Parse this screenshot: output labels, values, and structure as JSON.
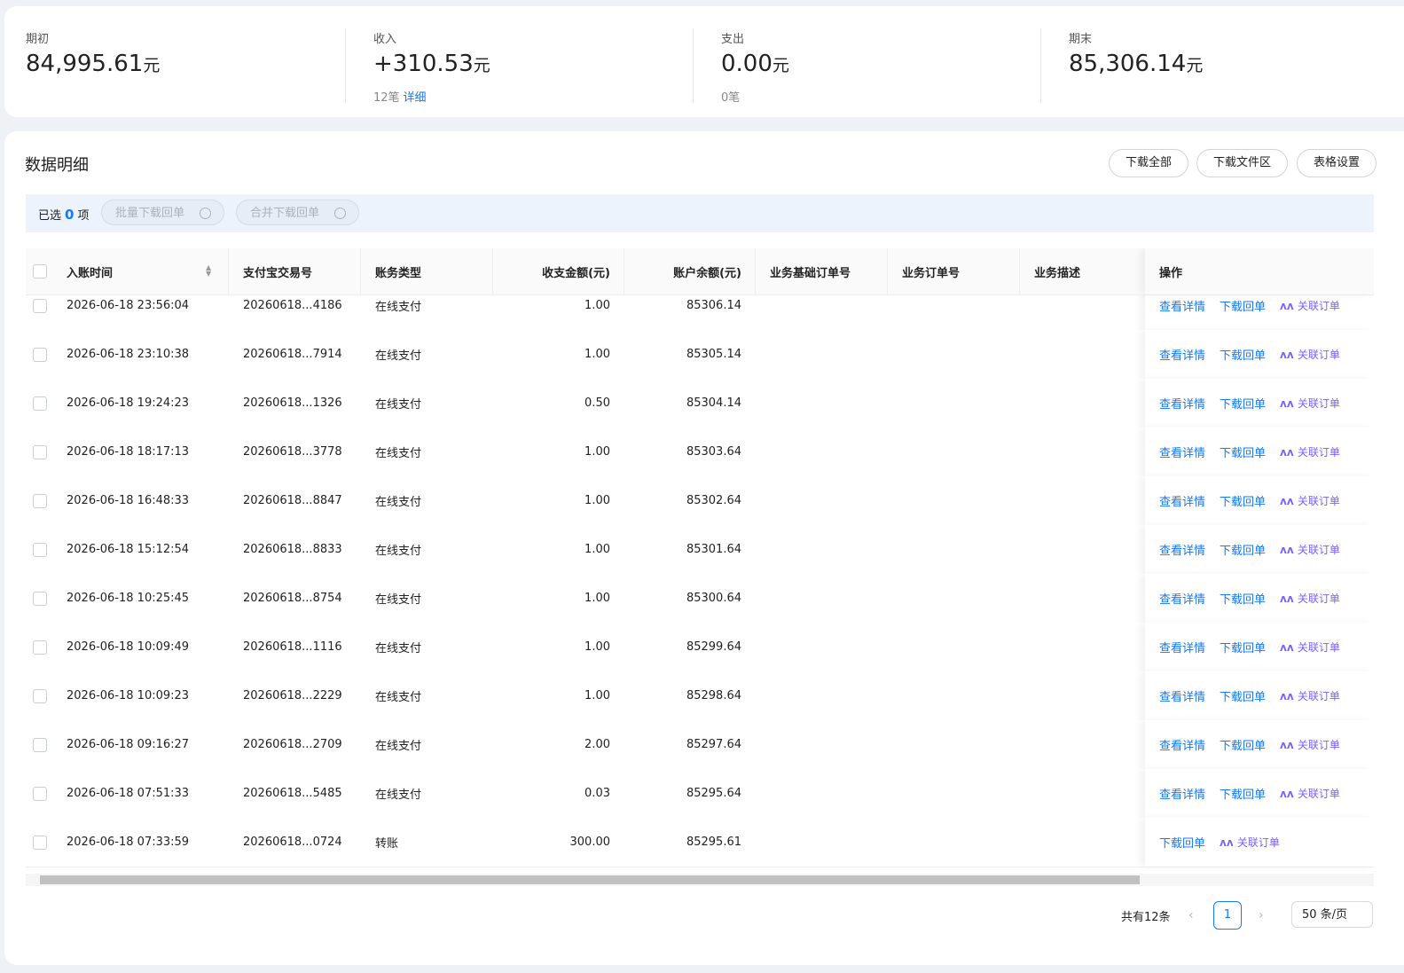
{
  "summary": [
    {
      "label": "期初",
      "value": "84,995.61",
      "unit": "元"
    },
    {
      "label": "收入",
      "value": "+310.53",
      "unit": "元",
      "count": "12笔",
      "link": "详细"
    },
    {
      "label": "支出",
      "value": "0.00",
      "unit": "元",
      "count": "0笔"
    },
    {
      "label": "期末",
      "value": "85,306.14",
      "unit": "元"
    }
  ],
  "section": {
    "title": "数据明细",
    "buttons": [
      "下载全部",
      "下载文件区",
      "表格设置"
    ]
  },
  "selection": {
    "prefix": "已选",
    "count": "0",
    "suffix": "项",
    "actions": [
      "批量下载回单",
      "合并下载回单"
    ]
  },
  "table": {
    "columns": [
      "入账时间",
      "支付宝交易号",
      "账务类型",
      "收支金额(元)",
      "账户余额(元)",
      "业务基础订单号",
      "业务订单号",
      "业务描述",
      "操作"
    ],
    "rows": [
      {
        "cells": [
          "2026-06-18 23:56:04",
          "20260618...4186",
          "在线支付",
          "1.00",
          "85306.14"
        ],
        "actions": [
          "查看详情",
          "下载回单",
          "关联订单"
        ]
      },
      {
        "cells": [
          "2026-06-18 23:10:38",
          "20260618...7914",
          "在线支付",
          "1.00",
          "85305.14"
        ],
        "actions": [
          "查看详情",
          "下载回单",
          "关联订单"
        ]
      },
      {
        "cells": [
          "2026-06-18 19:24:23",
          "20260618...1326",
          "在线支付",
          "0.50",
          "85304.14"
        ],
        "actions": [
          "查看详情",
          "下载回单",
          "关联订单"
        ]
      },
      {
        "cells": [
          "2026-06-18 18:17:13",
          "20260618...3778",
          "在线支付",
          "1.00",
          "85303.64"
        ],
        "actions": [
          "查看详情",
          "下载回单",
          "关联订单"
        ]
      },
      {
        "cells": [
          "2026-06-18 16:48:33",
          "20260618...8847",
          "在线支付",
          "1.00",
          "85302.64"
        ],
        "actions": [
          "查看详情",
          "下载回单",
          "关联订单"
        ]
      },
      {
        "cells": [
          "2026-06-18 15:12:54",
          "20260618...8833",
          "在线支付",
          "1.00",
          "85301.64"
        ],
        "actions": [
          "查看详情",
          "下载回单",
          "关联订单"
        ]
      },
      {
        "cells": [
          "2026-06-18 10:25:45",
          "20260618...8754",
          "在线支付",
          "1.00",
          "85300.64"
        ],
        "actions": [
          "查看详情",
          "下载回单",
          "关联订单"
        ]
      },
      {
        "cells": [
          "2026-06-18 10:09:49",
          "20260618...1116",
          "在线支付",
          "1.00",
          "85299.64"
        ],
        "actions": [
          "查看详情",
          "下载回单",
          "关联订单"
        ]
      },
      {
        "cells": [
          "2026-06-18 10:09:23",
          "20260618...2229",
          "在线支付",
          "1.00",
          "85298.64"
        ],
        "actions": [
          "查看详情",
          "下载回单",
          "关联订单"
        ]
      },
      {
        "cells": [
          "2026-06-18 09:16:27",
          "20260618...2709",
          "在线支付",
          "2.00",
          "85297.64"
        ],
        "actions": [
          "查看详情",
          "下载回单",
          "关联订单"
        ]
      },
      {
        "cells": [
          "2026-06-18 07:51:33",
          "20260618...5485",
          "在线支付",
          "0.03",
          "85295.64"
        ],
        "actions": [
          "查看详情",
          "下载回单",
          "关联订单"
        ]
      },
      {
        "cells": [
          "2026-06-18 07:33:59",
          "20260618...0724",
          "转账",
          "300.00",
          "85295.61"
        ],
        "actions": [
          "下载回单",
          "关联订单"
        ]
      }
    ]
  },
  "pagination": {
    "total": "共有12条",
    "page": "1",
    "size": "50 条/页"
  }
}
